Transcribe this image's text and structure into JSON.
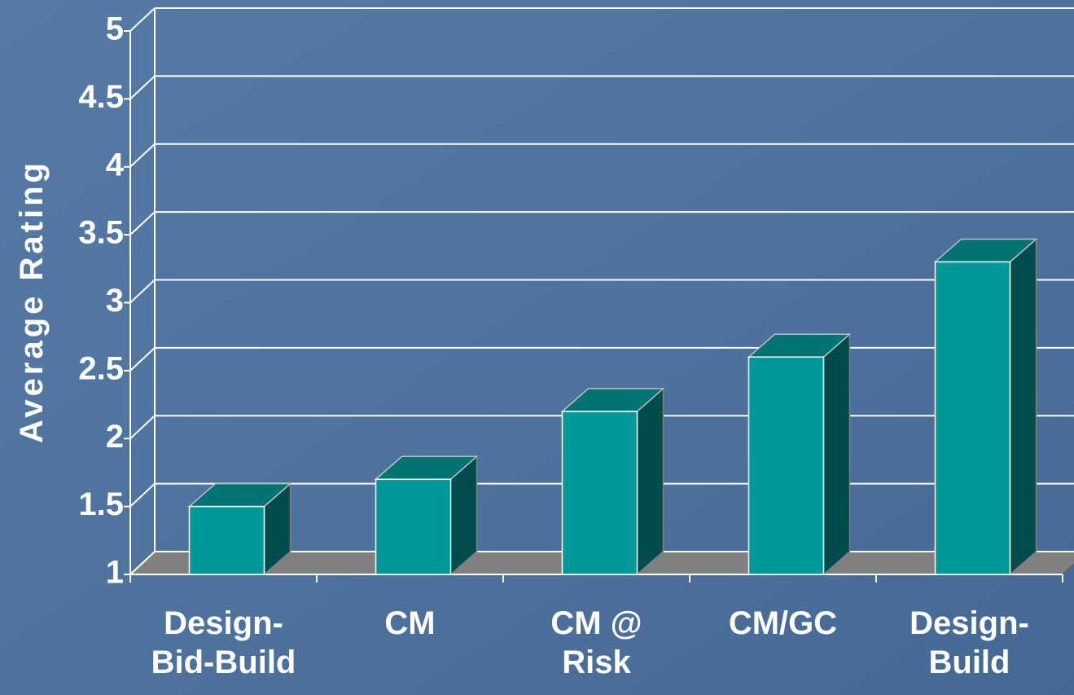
{
  "chart_data": {
    "type": "bar3d",
    "y_label": "Average Rating",
    "categories": [
      "Design-\nBid-Build",
      "CM",
      "CM @\nRisk",
      "CM/GC",
      "Design-\nBuild"
    ],
    "values": [
      1.5,
      1.7,
      2.2,
      2.6,
      3.3
    ],
    "color": "#009999",
    "ylim": [
      1,
      5
    ],
    "yticks": [
      1,
      1.5,
      2,
      2.5,
      3,
      3.5,
      4,
      4.5,
      5
    ],
    "grid": true
  }
}
